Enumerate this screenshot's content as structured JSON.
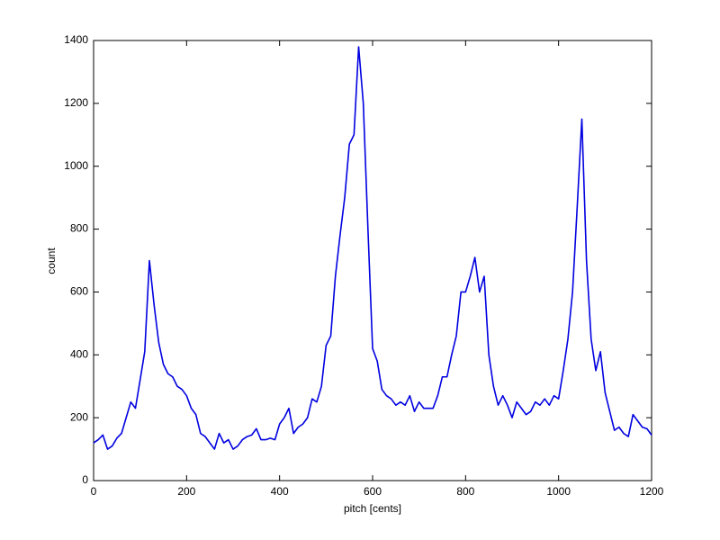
{
  "chart_data": {
    "type": "line",
    "xlabel": "pitch [cents]",
    "ylabel": "count",
    "x": [
      0,
      10,
      20,
      30,
      40,
      50,
      60,
      70,
      80,
      90,
      100,
      110,
      120,
      130,
      140,
      150,
      160,
      170,
      180,
      190,
      200,
      210,
      220,
      230,
      240,
      250,
      260,
      270,
      280,
      290,
      300,
      310,
      320,
      330,
      340,
      350,
      360,
      370,
      380,
      390,
      400,
      410,
      420,
      430,
      440,
      450,
      460,
      470,
      480,
      490,
      500,
      510,
      520,
      530,
      540,
      550,
      560,
      570,
      580,
      590,
      600,
      610,
      620,
      630,
      640,
      650,
      660,
      670,
      680,
      690,
      700,
      710,
      720,
      730,
      740,
      750,
      760,
      770,
      780,
      790,
      800,
      810,
      820,
      830,
      840,
      850,
      860,
      870,
      880,
      890,
      900,
      910,
      920,
      930,
      940,
      950,
      960,
      970,
      980,
      990,
      1000,
      1010,
      1020,
      1030,
      1040,
      1050,
      1060,
      1070,
      1080,
      1090,
      1100,
      1110,
      1120,
      1130,
      1140,
      1150,
      1160,
      1170,
      1180,
      1190,
      1200
    ],
    "values": [
      120,
      130,
      145,
      100,
      110,
      135,
      150,
      200,
      250,
      230,
      320,
      410,
      700,
      560,
      440,
      370,
      340,
      330,
      300,
      290,
      270,
      230,
      210,
      150,
      140,
      120,
      100,
      150,
      120,
      130,
      100,
      110,
      130,
      140,
      145,
      165,
      130,
      130,
      135,
      130,
      180,
      200,
      230,
      150,
      170,
      180,
      200,
      260,
      250,
      300,
      430,
      460,
      650,
      780,
      900,
      1070,
      1100,
      1380,
      1200,
      800,
      420,
      380,
      290,
      270,
      260,
      240,
      250,
      240,
      270,
      220,
      250,
      230,
      230,
      230,
      270,
      330,
      330,
      400,
      460,
      600,
      600,
      650,
      710,
      600,
      650,
      400,
      300,
      240,
      270,
      240,
      200,
      250,
      230,
      210,
      220,
      250,
      240,
      260,
      240,
      270,
      260,
      350,
      450,
      600,
      870,
      1150,
      700,
      450,
      350,
      410,
      280,
      220,
      160,
      170,
      150,
      140,
      210,
      190,
      170,
      165,
      145
    ],
    "color": "#0000e0",
    "xlim": [
      0,
      1200
    ],
    "xticks": [
      0,
      200,
      400,
      600,
      800,
      1000,
      1200
    ],
    "ylim": [
      0,
      1400
    ],
    "yticks": [
      0,
      200,
      400,
      600,
      800,
      1000,
      1200,
      1400
    ]
  }
}
